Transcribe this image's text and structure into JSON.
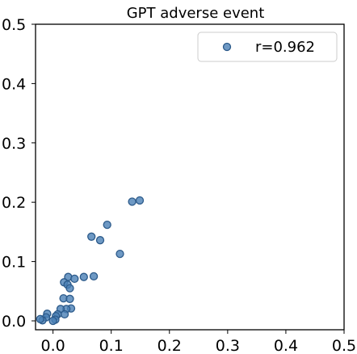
{
  "chart_data": {
    "type": "scatter",
    "title": "GPT adverse event",
    "xlabel": "",
    "ylabel": "",
    "xlim": [
      -0.03,
      0.5
    ],
    "ylim": [
      -0.015,
      0.5
    ],
    "x_ticks": [
      "0.0",
      "0.1",
      "0.2",
      "0.3",
      "0.4",
      "0.5"
    ],
    "y_ticks": [
      "0.0",
      "0.1",
      "0.2",
      "0.3",
      "0.4",
      "0.5"
    ],
    "x_tick_values": [
      0.0,
      0.1,
      0.2,
      0.3,
      0.4,
      0.5
    ],
    "y_tick_values": [
      0.0,
      0.1,
      0.2,
      0.3,
      0.4,
      0.5
    ],
    "grid": false,
    "legend_position": "top-right",
    "series": [
      {
        "name": "r=0.962",
        "color": "#4a7fb5",
        "points": [
          [
            0.149,
            0.203
          ],
          [
            0.136,
            0.201
          ],
          [
            0.093,
            0.162
          ],
          [
            0.066,
            0.142
          ],
          [
            0.081,
            0.136
          ],
          [
            0.115,
            0.113
          ],
          [
            0.026,
            0.074
          ],
          [
            0.07,
            0.075
          ],
          [
            0.053,
            0.074
          ],
          [
            0.037,
            0.071
          ],
          [
            0.019,
            0.065
          ],
          [
            0.025,
            0.061
          ],
          [
            0.029,
            0.055
          ],
          [
            0.018,
            0.038
          ],
          [
            0.029,
            0.037
          ],
          [
            0.031,
            0.021
          ],
          [
            0.023,
            0.02
          ],
          [
            0.013,
            0.02
          ],
          [
            0.02,
            0.011
          ],
          [
            0.008,
            0.011
          ],
          [
            0.005,
            0.008
          ],
          [
            0.004,
            0.002
          ],
          [
            0.0,
            0.0
          ],
          [
            -0.01,
            0.012
          ],
          [
            -0.012,
            0.006
          ],
          [
            -0.018,
            0.001
          ],
          [
            -0.022,
            0.003
          ]
        ]
      }
    ]
  }
}
